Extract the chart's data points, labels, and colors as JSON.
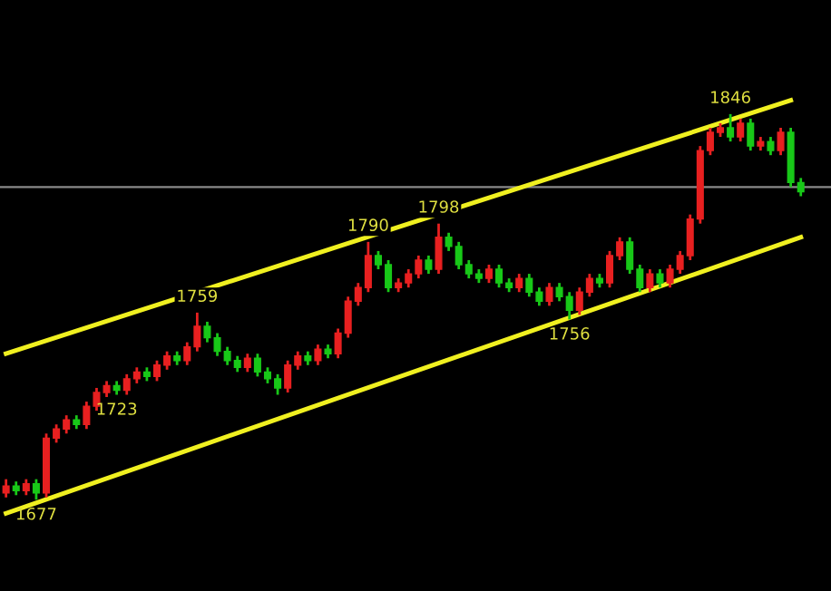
{
  "chart_data": {
    "type": "candlestick",
    "categories": [
      null,
      null,
      null,
      null,
      null,
      null,
      null,
      null,
      null,
      null,
      null,
      null,
      null,
      null,
      null,
      null,
      null,
      null,
      null,
      null,
      null,
      null,
      null,
      null,
      null,
      null,
      null,
      null,
      null,
      null,
      null,
      null,
      null,
      null,
      null,
      null,
      null,
      null,
      null,
      null,
      null,
      null,
      null,
      null,
      null,
      null,
      null,
      null,
      null,
      null,
      null,
      null,
      null,
      null,
      null,
      null,
      null,
      null,
      null,
      null,
      null,
      null,
      null,
      null,
      null,
      null,
      null,
      null,
      null,
      null,
      null,
      null,
      null,
      null,
      null,
      null,
      null,
      null,
      null,
      null
    ],
    "ohlc": [
      [
        1680,
        1686,
        1678,
        1683
      ],
      [
        1683,
        1685,
        1679,
        1681
      ],
      [
        1681,
        1686,
        1679,
        1684
      ],
      [
        1684,
        1686,
        1677,
        1680
      ],
      [
        1680,
        1706,
        1678,
        1704
      ],
      [
        1704,
        1710,
        1702,
        1708
      ],
      [
        1708,
        1714,
        1706,
        1712
      ],
      [
        1712,
        1714,
        1708,
        1710
      ],
      [
        1710,
        1720,
        1708,
        1718
      ],
      [
        1718,
        1726,
        1716,
        1724
      ],
      [
        1724,
        1729,
        1722,
        1727
      ],
      [
        1727,
        1729,
        1723,
        1725
      ],
      [
        1725,
        1732,
        1723,
        1730
      ],
      [
        1730,
        1735,
        1728,
        1733
      ],
      [
        1733,
        1735,
        1729,
        1731
      ],
      [
        1731,
        1738,
        1729,
        1736
      ],
      [
        1736,
        1742,
        1734,
        1740
      ],
      [
        1740,
        1742,
        1736,
        1738
      ],
      [
        1738,
        1746,
        1736,
        1744
      ],
      [
        1744,
        1759,
        1742,
        1753
      ],
      [
        1753,
        1755,
        1746,
        1748
      ],
      [
        1748,
        1750,
        1740,
        1742
      ],
      [
        1742,
        1744,
        1736,
        1738
      ],
      [
        1738,
        1740,
        1733,
        1735
      ],
      [
        1735,
        1741,
        1733,
        1739
      ],
      [
        1739,
        1741,
        1731,
        1733
      ],
      [
        1733,
        1735,
        1728,
        1730
      ],
      [
        1730,
        1732,
        1723,
        1726
      ],
      [
        1726,
        1738,
        1724,
        1736
      ],
      [
        1736,
        1742,
        1734,
        1740
      ],
      [
        1740,
        1742,
        1736,
        1738
      ],
      [
        1738,
        1745,
        1736,
        1743
      ],
      [
        1743,
        1745,
        1739,
        1741
      ],
      [
        1741,
        1752,
        1739,
        1750
      ],
      [
        1750,
        1766,
        1748,
        1764
      ],
      [
        1764,
        1772,
        1762,
        1770
      ],
      [
        1770,
        1790,
        1768,
        1784
      ],
      [
        1784,
        1786,
        1778,
        1780
      ],
      [
        1780,
        1782,
        1768,
        1770
      ],
      [
        1770,
        1774,
        1768,
        1772
      ],
      [
        1772,
        1778,
        1770,
        1776
      ],
      [
        1776,
        1784,
        1774,
        1782
      ],
      [
        1782,
        1784,
        1776,
        1778
      ],
      [
        1778,
        1798,
        1776,
        1792
      ],
      [
        1792,
        1794,
        1786,
        1788
      ],
      [
        1788,
        1790,
        1778,
        1780
      ],
      [
        1780,
        1782,
        1774,
        1776
      ],
      [
        1776,
        1778,
        1772,
        1774
      ],
      [
        1774,
        1780,
        1772,
        1778
      ],
      [
        1778,
        1780,
        1770,
        1772
      ],
      [
        1772,
        1774,
        1768,
        1770
      ],
      [
        1770,
        1776,
        1768,
        1774
      ],
      [
        1774,
        1776,
        1766,
        1768
      ],
      [
        1768,
        1770,
        1762,
        1764
      ],
      [
        1764,
        1772,
        1762,
        1770
      ],
      [
        1770,
        1772,
        1764,
        1766
      ],
      [
        1766,
        1768,
        1756,
        1760
      ],
      [
        1760,
        1770,
        1758,
        1768
      ],
      [
        1768,
        1776,
        1766,
        1774
      ],
      [
        1774,
        1776,
        1770,
        1772
      ],
      [
        1772,
        1786,
        1770,
        1784
      ],
      [
        1784,
        1792,
        1782,
        1790
      ],
      [
        1790,
        1792,
        1776,
        1778
      ],
      [
        1778,
        1780,
        1768,
        1770
      ],
      [
        1770,
        1778,
        1768,
        1776
      ],
      [
        1776,
        1778,
        1770,
        1772
      ],
      [
        1772,
        1780,
        1770,
        1778
      ],
      [
        1778,
        1786,
        1776,
        1784
      ],
      [
        1784,
        1802,
        1782,
        1800
      ],
      [
        1800,
        1832,
        1798,
        1830
      ],
      [
        1830,
        1840,
        1828,
        1838
      ],
      [
        1838,
        1842,
        1836,
        1840
      ],
      [
        1840,
        1846,
        1834,
        1836
      ],
      [
        1836,
        1844,
        1834,
        1842
      ],
      [
        1842,
        1844,
        1830,
        1832
      ],
      [
        1832,
        1836,
        1830,
        1834
      ],
      [
        1834,
        1836,
        1828,
        1830
      ],
      [
        1830,
        1840,
        1828,
        1838
      ],
      [
        1838,
        1840,
        1814,
        1816
      ],
      [
        1816,
        1818,
        1810,
        1812
      ]
    ],
    "colors": [
      "#e82020",
      "#18c818",
      "#e82020",
      "#18c818",
      "#e82020",
      "#e82020",
      "#e82020",
      "#18c818",
      "#e82020",
      "#e82020",
      "#e82020",
      "#18c818",
      "#e82020",
      "#e82020",
      "#18c818",
      "#e82020",
      "#e82020",
      "#18c818",
      "#e82020",
      "#e82020",
      "#18c818",
      "#18c818",
      "#18c818",
      "#18c818",
      "#e82020",
      "#18c818",
      "#18c818",
      "#18c818",
      "#e82020",
      "#e82020",
      "#18c818",
      "#e82020",
      "#18c818",
      "#e82020",
      "#e82020",
      "#e82020",
      "#e82020",
      "#18c818",
      "#18c818",
      "#e82020",
      "#e82020",
      "#e82020",
      "#18c818",
      "#e82020",
      "#18c818",
      "#18c818",
      "#18c818",
      "#18c818",
      "#e82020",
      "#18c818",
      "#18c818",
      "#e82020",
      "#18c818",
      "#18c818",
      "#e82020",
      "#18c818",
      "#18c818",
      "#e82020",
      "#e82020",
      "#18c818",
      "#e82020",
      "#e82020",
      "#18c818",
      "#18c818",
      "#e82020",
      "#18c818",
      "#e82020",
      "#e82020",
      "#e82020",
      "#e82020",
      "#e82020",
      "#e82020",
      "#18c818",
      "#e82020",
      "#18c818",
      "#e82020",
      "#18c818",
      "#e82020",
      "#18c818",
      "#18c818"
    ],
    "series": [
      {
        "type": "line",
        "color": "#f0f020",
        "values": [
          1741,
          null,
          null,
          null,
          null,
          null,
          null,
          null,
          null,
          null,
          null,
          null,
          null,
          null,
          null,
          null,
          null,
          null,
          null,
          null,
          null,
          null,
          null,
          null,
          null,
          null,
          null,
          null,
          null,
          null,
          null,
          null,
          null,
          null,
          null,
          null,
          null,
          null,
          null,
          null,
          null,
          null,
          null,
          null,
          null,
          null,
          null,
          null,
          null,
          null,
          null,
          null,
          null,
          null,
          null,
          null,
          null,
          null,
          null,
          null,
          null,
          null,
          null,
          null,
          null,
          null,
          null,
          null,
          null,
          null,
          null,
          null,
          null,
          null,
          null,
          null,
          null,
          null,
          1852,
          null
        ]
      },
      {
        "type": "line",
        "color": "#f0f020",
        "values": [
          1671,
          null,
          null,
          null,
          null,
          null,
          null,
          null,
          null,
          null,
          null,
          null,
          null,
          null,
          null,
          null,
          null,
          null,
          null,
          null,
          null,
          null,
          null,
          null,
          null,
          null,
          null,
          null,
          null,
          null,
          null,
          null,
          null,
          null,
          null,
          null,
          null,
          null,
          null,
          null,
          null,
          null,
          null,
          null,
          null,
          null,
          null,
          null,
          null,
          null,
          null,
          null,
          null,
          null,
          null,
          null,
          null,
          null,
          null,
          null,
          null,
          null,
          null,
          null,
          null,
          null,
          null,
          null,
          null,
          null,
          null,
          null,
          null,
          null,
          null,
          null,
          null,
          null,
          null,
          1792
        ]
      }
    ],
    "ref_lines": [
      {
        "axis": "y",
        "value": 1814,
        "color": "#8a8a8a"
      }
    ],
    "annotations": [
      {
        "text": "1677",
        "y": 1677
      },
      {
        "text": "1759",
        "y": 1759
      },
      {
        "text": "1723",
        "y": 1723
      },
      {
        "text": "1790",
        "y": 1790
      },
      {
        "text": "1798",
        "y": 1798
      },
      {
        "text": "1756",
        "y": 1756
      },
      {
        "text": "1846",
        "y": 1846
      }
    ],
    "ylim": [
      1637,
      1896
    ]
  }
}
